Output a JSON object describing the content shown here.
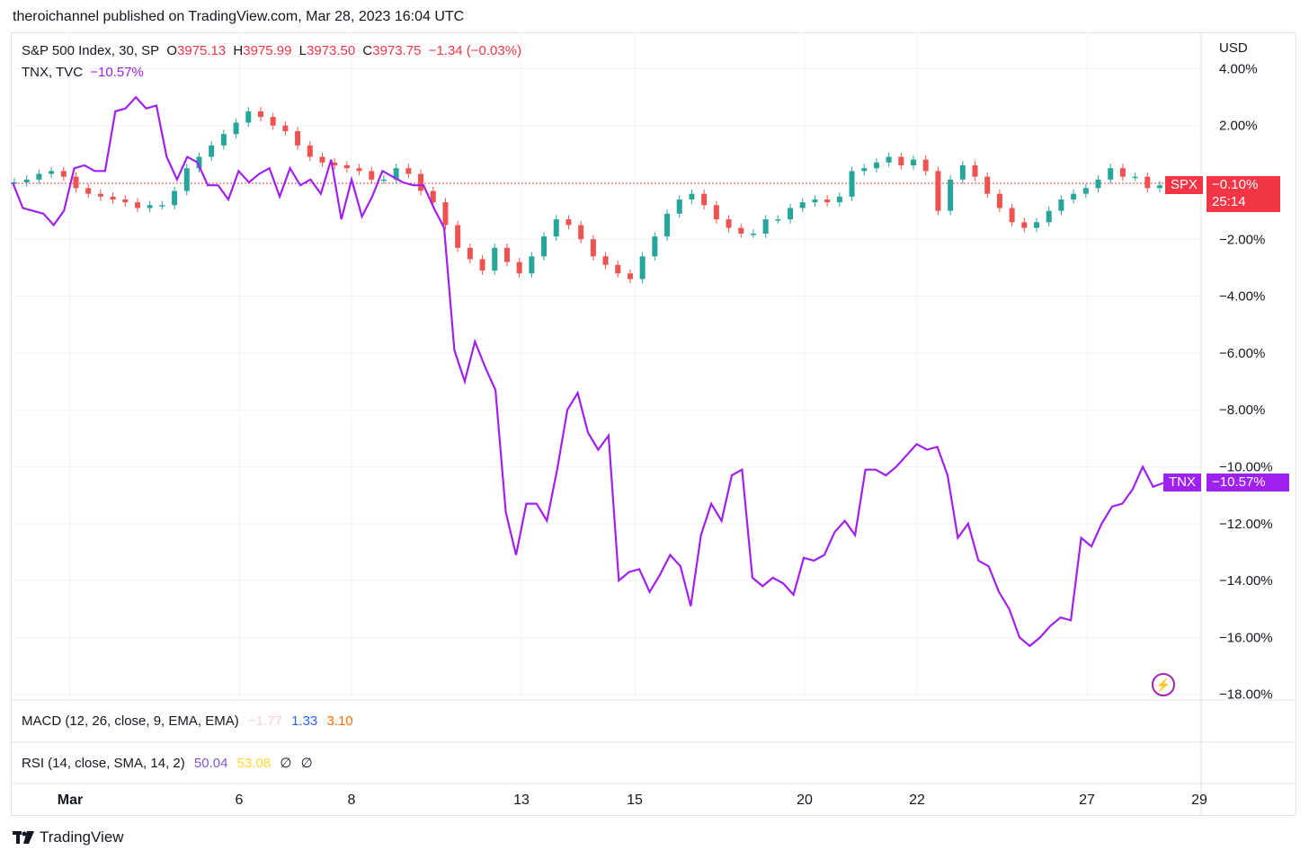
{
  "published": "theroichannel published on TradingView.com, Mar 28, 2023 16:04 UTC",
  "legend": {
    "spx": {
      "name": "S&P 500 Index, 30, SP",
      "o_label": "O",
      "o": "3975.13",
      "h_label": "H",
      "h": "3975.99",
      "l_label": "L",
      "l": "3973.50",
      "c_label": "C",
      "c": "3973.75",
      "chg": "−1.34 (−0.03%)"
    },
    "tnx": {
      "name": "TNX, TVC",
      "value": "−10.57%"
    }
  },
  "currency": "USD",
  "tags": {
    "spx_name": "SPX",
    "spx_value": "−0.10%",
    "spx_countdown": "25:14",
    "tnx_name": "TNX",
    "tnx_value": "−10.57%"
  },
  "panes": {
    "macd": {
      "label": "MACD (12, 26, close, 9, EMA, EMA)",
      "v1": "−1.77",
      "v2": "1.33",
      "v3": "3.10"
    },
    "rsi": {
      "label": "RSI (14, close, SMA, 14, 2)",
      "v1": "50.04",
      "v2": "53.08",
      "v3": "∅",
      "v4": "∅"
    }
  },
  "brand": "TradingView",
  "colors": {
    "up": "#26a69a",
    "down": "#ef5350",
    "tnx": "#a020f0",
    "spx_tag": "#f23645",
    "macd1": "#ffcdd2",
    "macd2": "#2962ff",
    "macd3": "#ff6d00",
    "rsi1": "#7e57c2",
    "rsi2": "#fdd835"
  },
  "chart_data": {
    "type": "line",
    "x_tick_labels": [
      "Mar",
      "6",
      "8",
      "13",
      "15",
      "20",
      "22",
      "27",
      "29"
    ],
    "y_tick_labels": [
      "4.00%",
      "2.00%",
      "−2.00%",
      "−4.00%",
      "−6.00%",
      "−8.00%",
      "−10.00%",
      "−12.00%",
      "−14.00%",
      "−16.00%",
      "−18.00%"
    ],
    "ylim": [
      -18,
      4
    ],
    "series": [
      {
        "name": "TNX",
        "values": [
          0,
          -0.9,
          -1.0,
          -1.1,
          -1.5,
          -1.0,
          0.5,
          0.6,
          0.4,
          0.4,
          2.5,
          2.6,
          3.0,
          2.6,
          2.7,
          0.9,
          0.1,
          0.9,
          0.7,
          -0.1,
          -0.1,
          -0.6,
          0.4,
          0.0,
          0.3,
          0.5,
          -0.5,
          0.5,
          -0.1,
          0.1,
          -0.4,
          0.8,
          -1.3,
          0.1,
          -1.2,
          -0.5,
          0.4,
          0.2,
          0.0,
          -0.1,
          -0.1,
          -0.9,
          -1.6,
          -5.9,
          -7.0,
          -5.6,
          -6.5,
          -7.3,
          -11.6,
          -13.1,
          -11.3,
          -11.3,
          -11.9,
          -10.1,
          -8.0,
          -7.4,
          -8.8,
          -9.4,
          -8.9,
          -14.0,
          -13.7,
          -13.6,
          -14.4,
          -13.8,
          -13.1,
          -13.5,
          -14.9,
          -12.4,
          -11.3,
          -11.9,
          -10.3,
          -10.1,
          -13.9,
          -14.2,
          -13.9,
          -14.1,
          -14.5,
          -13.2,
          -13.3,
          -13.1,
          -12.3,
          -11.9,
          -12.4,
          -10.1,
          -10.1,
          -10.3,
          -10.0,
          -9.6,
          -9.2,
          -9.4,
          -9.3,
          -10.3,
          -12.5,
          -12.0,
          -13.3,
          -13.5,
          -14.4,
          -15.0,
          -16.0,
          -16.3,
          -16.0,
          -15.6,
          -15.3,
          -15.4,
          -12.5,
          -12.8,
          -12.0,
          -11.4,
          -11.3,
          -10.8,
          -10.0,
          -10.7,
          -10.57
        ]
      },
      {
        "name": "SPX",
        "values": [
          0.0,
          0.1,
          0.3,
          0.4,
          0.2,
          -0.2,
          -0.4,
          -0.5,
          -0.6,
          -0.7,
          -0.9,
          -0.8,
          -0.8,
          -0.3,
          0.5,
          0.9,
          1.3,
          1.7,
          2.1,
          2.5,
          2.3,
          2.0,
          1.8,
          1.3,
          0.9,
          0.7,
          0.6,
          0.5,
          0.4,
          0.1,
          0.1,
          0.5,
          0.3,
          -0.3,
          -0.7,
          -1.5,
          -2.3,
          -2.7,
          -3.1,
          -2.3,
          -2.8,
          -3.2,
          -2.6,
          -1.9,
          -1.3,
          -1.5,
          -2.0,
          -2.6,
          -2.9,
          -3.2,
          -3.4,
          -2.6,
          -1.9,
          -1.1,
          -0.6,
          -0.4,
          -0.8,
          -1.3,
          -1.6,
          -1.8,
          -1.8,
          -1.3,
          -1.3,
          -0.9,
          -0.7,
          -0.6,
          -0.7,
          -0.5,
          0.4,
          0.5,
          0.7,
          0.9,
          0.6,
          0.8,
          0.4,
          -1.0,
          0.1,
          0.6,
          0.2,
          -0.4,
          -0.9,
          -1.4,
          -1.6,
          -1.4,
          -1.0,
          -0.6,
          -0.4,
          -0.2,
          0.1,
          0.5,
          0.2,
          0.2,
          -0.2,
          -0.1
        ]
      }
    ]
  }
}
